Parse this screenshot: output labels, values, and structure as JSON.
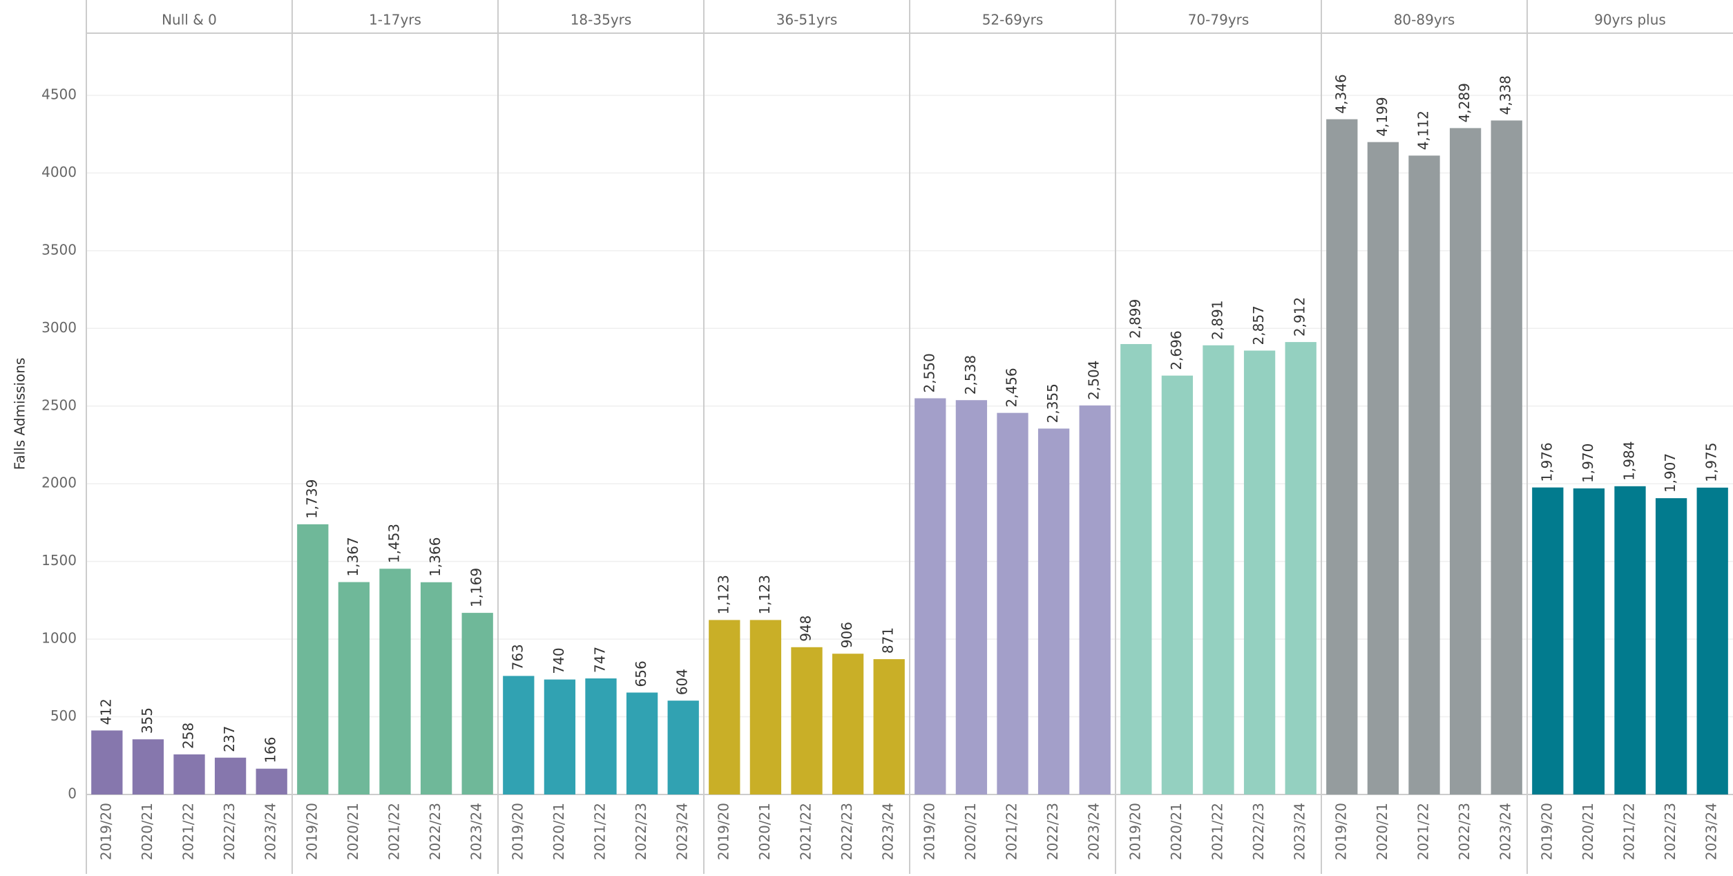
{
  "chart_data": {
    "type": "bar",
    "y_label": "Falls Admissions",
    "categories": [
      "2019/20",
      "2020/21",
      "2021/22",
      "2022/23",
      "2023/24"
    ],
    "ylim": [
      0,
      4900
    ],
    "yticks": [
      0,
      500,
      1000,
      1500,
      2000,
      2500,
      3000,
      3500,
      4000,
      4500
    ],
    "grid": true,
    "series": [
      {
        "name": "Null & 0",
        "color": "#8677ad",
        "values": [
          412,
          355,
          258,
          237,
          166
        ],
        "value_labels": [
          "412",
          "355",
          "258",
          "237",
          "166"
        ]
      },
      {
        "name": "1-17yrs",
        "color": "#6fb899",
        "values": [
          1739,
          1367,
          1453,
          1366,
          1169
        ],
        "value_labels": [
          "1,739",
          "1,367",
          "1,453",
          "1,366",
          "1,169"
        ]
      },
      {
        "name": "18-35yrs",
        "color": "#31a2b2",
        "values": [
          763,
          740,
          747,
          656,
          604
        ],
        "value_labels": [
          "763",
          "740",
          "747",
          "656",
          "604"
        ]
      },
      {
        "name": "36-51yrs",
        "color": "#c9af27",
        "values": [
          1123,
          1123,
          948,
          906,
          871
        ],
        "value_labels": [
          "1,123",
          "1,123",
          "948",
          "906",
          "871"
        ]
      },
      {
        "name": "52-69yrs",
        "color": "#a39fc9",
        "values": [
          2550,
          2538,
          2456,
          2355,
          2504
        ],
        "value_labels": [
          "2,550",
          "2,538",
          "2,456",
          "2,355",
          "2,504"
        ]
      },
      {
        "name": "70-79yrs",
        "color": "#94d0c0",
        "values": [
          2899,
          2696,
          2891,
          2857,
          2912
        ],
        "value_labels": [
          "2,899",
          "2,696",
          "2,891",
          "2,857",
          "2,912"
        ]
      },
      {
        "name": "80-89yrs",
        "color": "#959c9e",
        "values": [
          4346,
          4199,
          4112,
          4289,
          4338
        ],
        "value_labels": [
          "4,346",
          "4,199",
          "4,112",
          "4,289",
          "4,338"
        ]
      },
      {
        "name": "90yrs plus",
        "color": "#027b8e",
        "values": [
          1976,
          1970,
          1984,
          1907,
          1975
        ],
        "value_labels": [
          "1,976",
          "1,970",
          "1,984",
          "1,907",
          "1,975"
        ]
      }
    ]
  }
}
